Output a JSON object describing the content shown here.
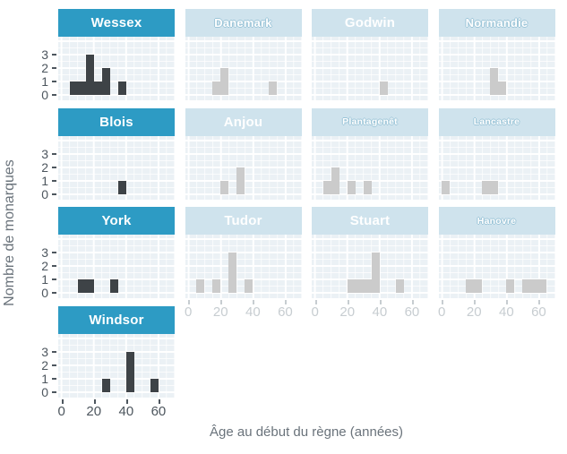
{
  "chart_data": {
    "type": "bar",
    "subtype": "faceted-histogram",
    "binwidth": 5,
    "x_domain": [
      -2,
      70
    ],
    "y_domain": [
      0,
      3.9
    ],
    "xlabel": "Âge au début du règne (années)",
    "ylabel": "Nombre de monarques",
    "x_ticks": [
      {
        "value": 0,
        "label": "0"
      },
      {
        "value": 20,
        "label": "20"
      },
      {
        "value": 40,
        "label": "40"
      },
      {
        "value": 60,
        "label": "60"
      }
    ],
    "y_ticks": [
      {
        "value": 3,
        "label": "3"
      },
      {
        "value": 2,
        "label": "2"
      },
      {
        "value": 1,
        "label": "1"
      },
      {
        "value": 0,
        "label": "0"
      }
    ],
    "grid": "on",
    "facets": [
      {
        "label": "Wessex",
        "row": 1,
        "col": 1,
        "active": true,
        "label_style": "plain",
        "label_size": "normal",
        "show_xaxis": false,
        "axis_style": "dark",
        "bins": [
          [
            5,
            1
          ],
          [
            10,
            1
          ],
          [
            15,
            3
          ],
          [
            20,
            1
          ],
          [
            25,
            2
          ],
          [
            35,
            1
          ]
        ]
      },
      {
        "label": "Danemark",
        "row": 1,
        "col": 2,
        "active": false,
        "label_style": "halo",
        "label_size": "mid",
        "show_xaxis": false,
        "axis_style": "faded",
        "bins": [
          [
            15,
            1
          ],
          [
            20,
            2
          ],
          [
            50,
            1
          ]
        ]
      },
      {
        "label": "Godwin",
        "row": 1,
        "col": 3,
        "active": false,
        "label_style": "plain",
        "label_size": "normal",
        "show_xaxis": false,
        "axis_style": "faded",
        "bins": [
          [
            40,
            1
          ]
        ]
      },
      {
        "label": "Normandie",
        "row": 1,
        "col": 4,
        "active": false,
        "label_style": "halo",
        "label_size": "mid",
        "show_xaxis": false,
        "axis_style": "faded",
        "bins": [
          [
            30,
            2
          ],
          [
            35,
            1
          ]
        ]
      },
      {
        "label": "Blois",
        "row": 2,
        "col": 1,
        "active": true,
        "label_style": "plain",
        "label_size": "normal",
        "show_xaxis": false,
        "axis_style": "dark",
        "bins": [
          [
            35,
            1
          ]
        ]
      },
      {
        "label": "Anjou",
        "row": 2,
        "col": 2,
        "active": false,
        "label_style": "plain",
        "label_size": "normal",
        "show_xaxis": false,
        "axis_style": "faded",
        "bins": [
          [
            20,
            1
          ],
          [
            30,
            2
          ]
        ]
      },
      {
        "label": "Plantagenêt",
        "row": 2,
        "col": 3,
        "active": false,
        "label_style": "halo",
        "label_size": "small",
        "show_xaxis": false,
        "axis_style": "faded",
        "bins": [
          [
            5,
            1
          ],
          [
            10,
            2
          ],
          [
            20,
            1
          ],
          [
            30,
            1
          ]
        ]
      },
      {
        "label": "Lancastre",
        "row": 2,
        "col": 4,
        "active": false,
        "label_style": "halo",
        "label_size": "small",
        "show_xaxis": false,
        "axis_style": "faded",
        "bins": [
          [
            0,
            1
          ],
          [
            25,
            1
          ],
          [
            30,
            1
          ]
        ]
      },
      {
        "label": "York",
        "row": 3,
        "col": 1,
        "active": true,
        "label_style": "plain",
        "label_size": "normal",
        "show_xaxis": false,
        "axis_style": "dark",
        "bins": [
          [
            10,
            1
          ],
          [
            15,
            1
          ],
          [
            30,
            1
          ]
        ]
      },
      {
        "label": "Tudor",
        "row": 3,
        "col": 2,
        "active": false,
        "label_style": "plain",
        "label_size": "normal",
        "show_xaxis": true,
        "axis_style": "faded",
        "bins": [
          [
            5,
            1
          ],
          [
            15,
            1
          ],
          [
            25,
            3
          ],
          [
            35,
            1
          ]
        ]
      },
      {
        "label": "Stuart",
        "row": 3,
        "col": 3,
        "active": false,
        "label_style": "plain",
        "label_size": "normal",
        "show_xaxis": true,
        "axis_style": "faded",
        "bins": [
          [
            20,
            1
          ],
          [
            25,
            1
          ],
          [
            30,
            1
          ],
          [
            35,
            3
          ],
          [
            50,
            1
          ]
        ]
      },
      {
        "label": "Hanovre",
        "row": 3,
        "col": 4,
        "active": false,
        "label_style": "halo",
        "label_size": "small",
        "show_xaxis": true,
        "axis_style": "faded",
        "bins": [
          [
            15,
            1
          ],
          [
            20,
            1
          ],
          [
            40,
            1
          ],
          [
            50,
            1
          ],
          [
            55,
            1
          ],
          [
            60,
            1
          ]
        ]
      },
      {
        "label": "Windsor",
        "row": 4,
        "col": 1,
        "active": true,
        "label_style": "plain",
        "label_size": "normal",
        "show_xaxis": true,
        "axis_style": "dark",
        "bins": [
          [
            25,
            1
          ],
          [
            40,
            3
          ],
          [
            55,
            1
          ]
        ]
      }
    ]
  },
  "colors": {
    "active_strip": "#2D9BC4",
    "inactive_strip": "#CFE3ED",
    "strip_text": "#FFFFFF",
    "halo": "#9CC5D8",
    "active_bar": "#3E4347",
    "inactive_bar": "#CBCBCB",
    "panel_bg": "#EBF1F5",
    "grid_line": "#FFFFFF",
    "axis_text_dark": "#4D565E",
    "axis_text_faded": "#C7CDD1",
    "axis_title": "#6A737B"
  }
}
